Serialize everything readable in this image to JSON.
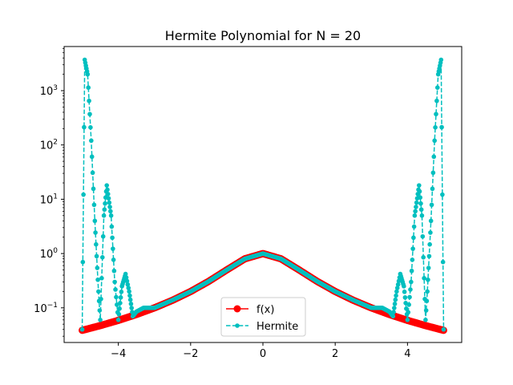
{
  "chart_data": {
    "type": "line",
    "title": "Hermite Polynomial for N = 20",
    "xlabel": "",
    "ylabel": "",
    "xlim": [
      -5.5,
      5.5
    ],
    "ylim": [
      0.023,
      6500
    ],
    "yscale": "log",
    "grid": false,
    "legend_position": "lower-center",
    "x_ticks": [
      {
        "value": -4,
        "label": "−4"
      },
      {
        "value": -2,
        "label": "−2"
      },
      {
        "value": 0,
        "label": "0"
      },
      {
        "value": 2,
        "label": "2"
      },
      {
        "value": 4,
        "label": "4"
      }
    ],
    "y_ticks": [
      {
        "value": 0.1,
        "base": "10",
        "exp": "−1"
      },
      {
        "value": 1,
        "base": "10",
        "exp": "0"
      },
      {
        "value": 10,
        "base": "10",
        "exp": "1"
      },
      {
        "value": 100,
        "base": "10",
        "exp": "2"
      },
      {
        "value": 1000,
        "base": "10",
        "exp": "3"
      }
    ],
    "series": [
      {
        "name": "f(x)",
        "color": "#ff0000",
        "style": "solid-line-circle-markers",
        "x": [
          -5.0,
          -4.5,
          -4.0,
          -3.5,
          -3.0,
          -2.5,
          -2.0,
          -1.5,
          -1.0,
          -0.5,
          0.0,
          0.5,
          1.0,
          1.5,
          2.0,
          2.5,
          3.0,
          3.5,
          4.0,
          4.5,
          5.0
        ],
        "y": [
          0.0385,
          0.0471,
          0.0588,
          0.0755,
          0.1,
          0.1379,
          0.2,
          0.3077,
          0.5,
          0.8,
          1.0,
          0.8,
          0.5,
          0.3077,
          0.2,
          0.1379,
          0.1,
          0.0755,
          0.0588,
          0.0471,
          0.0385
        ]
      },
      {
        "name": "Hermite",
        "color": "#00bfbf",
        "style": "dashed-line-point-markers",
        "x": [
          -5.0,
          -4.93,
          -4.85,
          -4.75,
          -4.65,
          -4.55,
          -4.5,
          -4.4,
          -4.32,
          -4.2,
          -4.1,
          -4.0,
          -3.9,
          -3.8,
          -3.7,
          -3.6,
          -3.5,
          -3.3,
          -3.0,
          -2.5,
          -2.0,
          -1.5,
          -1.0,
          -0.5,
          0.0,
          0.5,
          1.0,
          1.5,
          2.0,
          2.5,
          3.0,
          3.3,
          3.5,
          3.6,
          3.7,
          3.8,
          3.9,
          4.0,
          4.1,
          4.2,
          4.32,
          4.4,
          4.5,
          4.55,
          4.65,
          4.75,
          4.85,
          4.93,
          5.0
        ],
        "y": [
          0.04,
          3700,
          2000,
          120,
          4,
          0.2,
          0.06,
          5,
          18,
          5,
          0.3,
          0.06,
          0.25,
          0.42,
          0.2,
          0.07,
          0.085,
          0.1,
          0.1,
          0.139,
          0.2,
          0.308,
          0.5,
          0.8,
          1.0,
          0.8,
          0.5,
          0.308,
          0.2,
          0.139,
          0.1,
          0.1,
          0.085,
          0.07,
          0.2,
          0.42,
          0.25,
          0.06,
          0.3,
          5,
          18,
          5,
          0.06,
          0.2,
          4,
          120,
          2000,
          3700,
          0.04
        ]
      }
    ]
  }
}
